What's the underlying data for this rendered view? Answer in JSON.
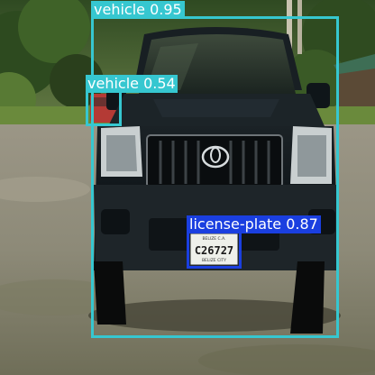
{
  "image": {
    "description_tag": "object-detection-output",
    "colors": {
      "vehicle_box": "#36c7d0",
      "vehicle_small_box": "#36c7d0",
      "plate_box": "#1a3fe0",
      "label_text": "#ffffff"
    }
  },
  "detections": [
    {
      "class": "vehicle",
      "confidence": "0.95",
      "label": "vehicle 0.95"
    },
    {
      "class": "vehicle",
      "confidence": "0.54",
      "label": "vehicle 0.54"
    },
    {
      "class": "license-plate",
      "confidence": "0.87",
      "label": "license-plate 0.87"
    }
  ],
  "plate": {
    "number": "C26727",
    "top_text": "BELIZE C.A.",
    "bottom_text": "BELIZE CITY"
  }
}
